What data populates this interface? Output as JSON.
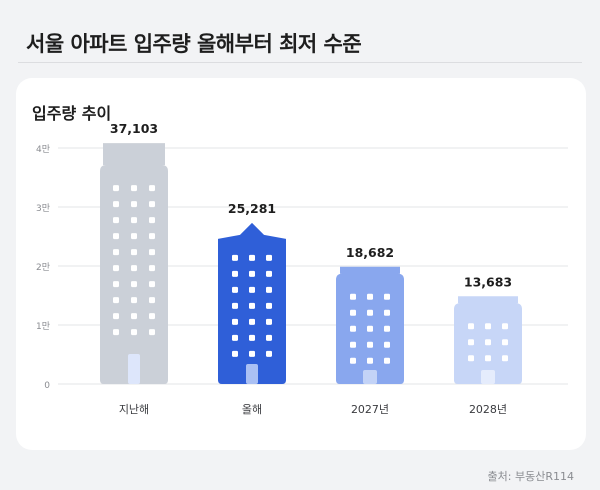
{
  "headline": "서울 아파트 입주량 올해부터 최저 수준",
  "source": "출처: 부동산R114",
  "colors": {
    "page_bg": "#f2f3f5",
    "card_bg": "#ffffff",
    "gray_bar": "#cbd0d8",
    "window_white": "#ffffff",
    "door_light": "#dde6fb",
    "grid": "#e3e4e7"
  },
  "chart_data": {
    "type": "bar",
    "title": "입주량 추이",
    "categories": [
      "지난해",
      "올해",
      "2027년",
      "2028년"
    ],
    "values": [
      37103,
      25281,
      18682,
      13683
    ],
    "value_labels": [
      "37,103",
      "25,281",
      "18,682",
      "13,683"
    ],
    "bar_colors": [
      "#cbd0d8",
      "#2f5fd8",
      "#89a7ee",
      "#c7d6f7"
    ],
    "ylim": [
      0,
      40000
    ],
    "yticks": [
      0,
      10000,
      20000,
      30000,
      40000
    ],
    "ytick_labels": [
      "0",
      "1만",
      "2만",
      "3만",
      "4만"
    ],
    "grid": true,
    "xlabel": "",
    "ylabel": ""
  }
}
